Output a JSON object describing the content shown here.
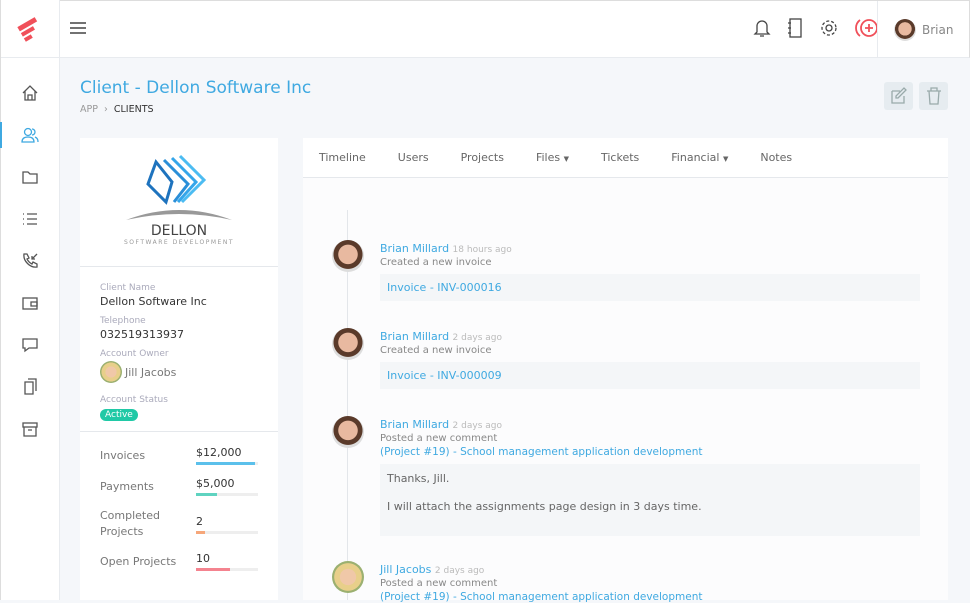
{
  "header": {
    "user_name": "Brian"
  },
  "page": {
    "title": "Client - Dellon Software Inc",
    "breadcrumb": [
      "APP",
      "CLIENTS"
    ]
  },
  "client_logo": {
    "name": "DELLON",
    "tagline": "SOFTWARE DEVELOPMENT"
  },
  "client": {
    "fields": [
      {
        "label": "Client Name",
        "value": "Dellon Software Inc"
      },
      {
        "label": "Telephone",
        "value": "032519313937"
      }
    ],
    "owner_label": "Account Owner",
    "owner": "Jill Jacobs",
    "status_label": "Account Status",
    "status": "Active"
  },
  "stats": [
    {
      "label": "Invoices",
      "value": "$12,000",
      "percent": 95,
      "color": "#5bc0eb"
    },
    {
      "label": "Payments",
      "value": "$5,000",
      "percent": 34,
      "color": "#5fd3c0"
    },
    {
      "label": "Completed Projects",
      "value": "2",
      "percent": 14,
      "color": "#f6a77a"
    },
    {
      "label": "Open Projects",
      "value": "10",
      "percent": 55,
      "color": "#f4838f"
    }
  ],
  "tabs": [
    "Timeline",
    "Users",
    "Projects",
    "Files",
    "Tickets",
    "Financial",
    "Notes"
  ],
  "timeline": [
    {
      "name": "Brian Millard",
      "time": "18 hours ago",
      "action": "Created a new invoice",
      "link": "Invoice - INV-000016"
    },
    {
      "name": "Brian Millard",
      "time": "2 days ago",
      "action": "Created a new invoice",
      "link": "Invoice - INV-000009"
    },
    {
      "name": "Brian Millard",
      "time": "2 days ago",
      "action": "Posted a new comment",
      "project": "(Project #19) - School management application development",
      "comment": [
        "Thanks, Jill.",
        "I will attach the assignments page design in 3 days time."
      ]
    },
    {
      "name": "Jill Jacobs",
      "time": "2 days ago",
      "action": "Posted a new comment",
      "project": "(Project #19) - School management application development"
    }
  ],
  "colors": {
    "accent": "#3fa9e1",
    "brand": "#f0505a",
    "active": "#20c9a6"
  }
}
